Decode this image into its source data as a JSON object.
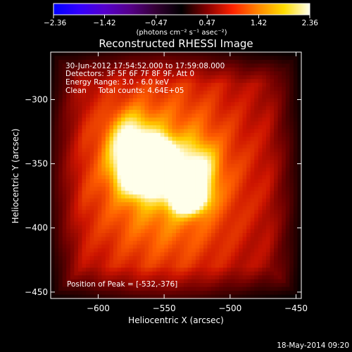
{
  "colorbar": {
    "min": -2.36,
    "max": 2.36,
    "tick_labels": [
      "-2.36",
      "-1.42",
      "-0.47",
      "0.47",
      "1.42",
      "2.36"
    ],
    "units_label": "(photons cm⁻² s⁻¹ asec⁻²)",
    "colors": [
      "#0000ff",
      "#3300ff",
      "#5500cc",
      "#550088",
      "#330033",
      "#000000",
      "#880000",
      "#ff2200",
      "#ff8800",
      "#ffdd00",
      "#ffffee"
    ]
  },
  "chart_data": {
    "type": "heatmap",
    "title": "Reconstructed RHESSI Image",
    "xlabel": "Heliocentric X (arcsec)",
    "ylabel": "Heliocentric Y (arcsec)",
    "xlim": [
      -636,
      -446
    ],
    "ylim": [
      -455,
      -263
    ],
    "xticks": [
      -600,
      -550,
      -500,
      -450
    ],
    "yticks": [
      -300,
      -350,
      -400,
      -450
    ],
    "xtick_labels": [
      "−600",
      "−550",
      "−500",
      "−450"
    ],
    "ytick_labels": [
      "−300",
      "−350",
      "−400",
      "−450"
    ],
    "annotations": [
      "30-Jun-2012 17:54:52.000 to 17:59:08.000",
      "Detectors: 3F 5F 6F 7F 8F 9F, Att 0",
      "Energy Range: 3.0 - 6.0 keV",
      "Clean     Total counts: 4.64E+05"
    ],
    "peak_label": "Position of Peak = [-532,-376]",
    "peak": [
      -532,
      -376
    ],
    "sources": [
      {
        "x": -532,
        "y": -376,
        "amp": 1.0,
        "sx": 9,
        "sy": 8
      },
      {
        "x": -565,
        "y": -358,
        "amp": 0.92,
        "sx": 12,
        "sy": 11
      },
      {
        "x": -575,
        "y": -335,
        "amp": 0.55,
        "sx": 12,
        "sy": 16
      },
      {
        "x": -553,
        "y": -340,
        "amp": 0.6,
        "sx": 8,
        "sy": 8
      },
      {
        "x": -525,
        "y": -355,
        "amp": 0.45,
        "sx": 10,
        "sy": 14
      },
      {
        "x": -550,
        "y": -360,
        "amp": 0.55,
        "sx": 48,
        "sy": 58
      }
    ],
    "background_level": 0.3,
    "grid": false
  },
  "footer_date": "18-May-2014 09:20"
}
